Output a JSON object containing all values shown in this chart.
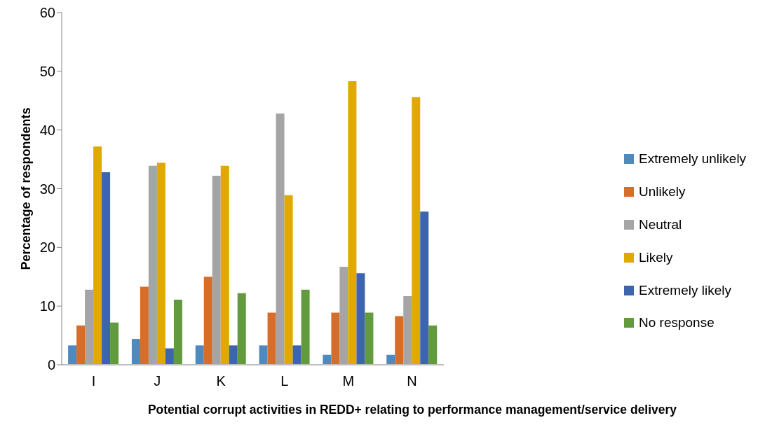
{
  "chart_data": {
    "type": "bar",
    "xlabel": "Potential corrupt activities in REDD+ relating to performance management/service delivery",
    "ylabel": "Percentage of respondents",
    "categories": [
      "I",
      "J",
      "K",
      "L",
      "M",
      "N"
    ],
    "series": [
      {
        "name": "Extremely unlikely",
        "color": "#4f89bd",
        "values": [
          3.3,
          4.4,
          3.3,
          3.3,
          1.7,
          1.7
        ]
      },
      {
        "name": "Unlikely",
        "color": "#d56e2a",
        "values": [
          6.7,
          13.3,
          15.0,
          8.9,
          8.9,
          8.3
        ]
      },
      {
        "name": "Neutral",
        "color": "#a5a5a5",
        "values": [
          12.8,
          33.9,
          32.2,
          42.8,
          16.7,
          11.7
        ]
      },
      {
        "name": "Likely",
        "color": "#e0a900",
        "values": [
          37.2,
          34.4,
          33.9,
          28.9,
          48.3,
          45.6
        ]
      },
      {
        "name": "Extremely likely",
        "color": "#3d65ad",
        "values": [
          32.8,
          2.8,
          3.3,
          3.3,
          15.6,
          26.1
        ]
      },
      {
        "name": "No response",
        "color": "#629a3e",
        "values": [
          7.2,
          11.1,
          12.2,
          12.8,
          8.9,
          6.7
        ]
      }
    ],
    "ylim": [
      0,
      60
    ],
    "yticks": [
      0,
      10,
      20,
      30,
      40,
      50,
      60
    ],
    "legend": "right"
  }
}
